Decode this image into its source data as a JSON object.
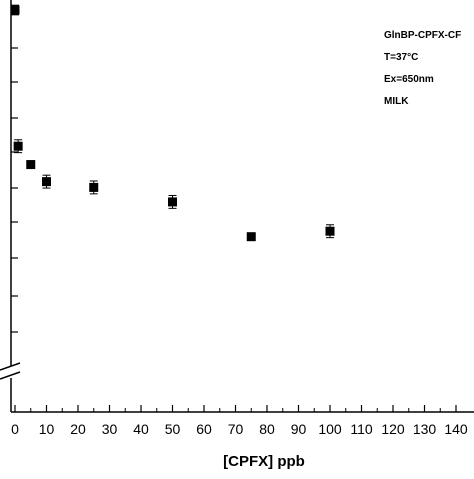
{
  "chart_data": {
    "type": "scatter",
    "title": "",
    "xlabel": "[CPFX] ppb",
    "ylabel": "",
    "xlim": [
      0,
      145
    ],
    "x_ticks": [
      0,
      10,
      20,
      30,
      40,
      50,
      60,
      70,
      80,
      90,
      100,
      110,
      120,
      130,
      140
    ],
    "x_tick_labels": [
      "0",
      "10",
      "20",
      "30",
      "40",
      "50",
      "60",
      "70",
      "80",
      "90",
      "100",
      "110",
      "120",
      "130",
      "140"
    ],
    "y_axis_break": true,
    "grid": false,
    "legend": "none",
    "marker": "square",
    "marker_color": "#000000",
    "annotations": [
      "GlnBP-CPFX-CF",
      "T=37°C",
      "Ex=650nm",
      "MILK"
    ],
    "series": [
      {
        "x": [
          0,
          1,
          5,
          10,
          25,
          50,
          75,
          100
        ],
        "y": [
          1.0,
          0.577,
          0.52,
          0.467,
          0.449,
          0.404,
          0.296,
          0.313
        ],
        "y_error": [
          0.015,
          0.02,
          0.008,
          0.02,
          0.02,
          0.02,
          0.008,
          0.02
        ]
      }
    ]
  }
}
